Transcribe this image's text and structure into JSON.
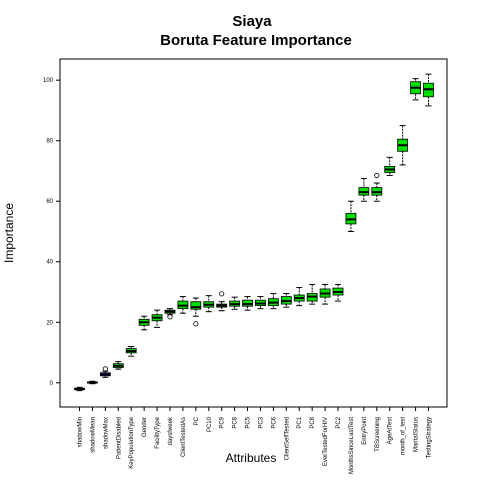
{
  "chart_data": {
    "type": "boxplot",
    "title": "Siaya",
    "subtitle": "Boruta Feature Importance",
    "xlabel": "Attributes",
    "ylabel": "Importance",
    "ylim": [
      -8,
      107
    ],
    "yticks": [
      0,
      20,
      40,
      60,
      80,
      100
    ],
    "colors": {
      "shadow": "#0000ff",
      "rejected": "#ff0000",
      "tentative": "#ffff00",
      "confirmed": "#00dd00"
    },
    "boxes": [
      {
        "label": "shadowMin",
        "status": "shadow",
        "min": -2.6,
        "q1": -2.3,
        "median": -2.0,
        "q3": -1.8,
        "max": -1.5,
        "outliers": []
      },
      {
        "label": "shadowMean",
        "status": "shadow",
        "min": -0.3,
        "q1": -0.1,
        "median": 0.1,
        "q3": 0.3,
        "max": 0.5,
        "outliers": []
      },
      {
        "label": "shadowMax",
        "status": "shadow",
        "min": 1.8,
        "q1": 2.3,
        "median": 2.8,
        "q3": 3.3,
        "max": 3.8,
        "outliers": [
          4.6
        ]
      },
      {
        "label": "PatientDisabled",
        "status": "confirmed",
        "min": 4.5,
        "q1": 5.0,
        "median": 5.6,
        "q3": 6.3,
        "max": 7.0,
        "outliers": []
      },
      {
        "label": "KeyPopulationType",
        "status": "confirmed",
        "min": 8.8,
        "q1": 9.9,
        "median": 10.5,
        "q3": 11.3,
        "max": 12.0,
        "outliers": []
      },
      {
        "label": "Gender",
        "status": "confirmed",
        "min": 17.5,
        "q1": 19.0,
        "median": 20.0,
        "q3": 21.0,
        "max": 22.0,
        "outliers": []
      },
      {
        "label": "FacilityType",
        "status": "confirmed",
        "min": 18.3,
        "q1": 20.5,
        "median": 21.5,
        "q3": 22.5,
        "max": 24.0,
        "outliers": []
      },
      {
        "label": "daysfweek",
        "status": "confirmed",
        "min": 22.5,
        "q1": 23.0,
        "median": 23.5,
        "q3": 24.0,
        "max": 24.5,
        "outliers": [
          21.8
        ]
      },
      {
        "label": "ClientTestedAs",
        "status": "confirmed",
        "min": 23.0,
        "q1": 24.5,
        "median": 25.5,
        "q3": 27.0,
        "max": 28.5,
        "outliers": []
      },
      {
        "label": "PC",
        "status": "confirmed",
        "min": 22.0,
        "q1": 24.3,
        "median": 25.0,
        "q3": 26.8,
        "max": 28.0,
        "outliers": [
          19.5
        ]
      },
      {
        "label": "PC10",
        "status": "confirmed",
        "min": 23.5,
        "q1": 25.0,
        "median": 25.8,
        "q3": 26.8,
        "max": 28.8,
        "outliers": []
      },
      {
        "label": "PC9",
        "status": "confirmed",
        "min": 23.8,
        "q1": 25.0,
        "median": 25.5,
        "q3": 26.0,
        "max": 26.8,
        "outliers": [
          29.4
        ]
      },
      {
        "label": "PC8",
        "status": "confirmed",
        "min": 24.3,
        "q1": 25.3,
        "median": 26.0,
        "q3": 27.0,
        "max": 28.3,
        "outliers": []
      },
      {
        "label": "PC5",
        "status": "confirmed",
        "min": 24.0,
        "q1": 25.3,
        "median": 26.0,
        "q3": 27.3,
        "max": 28.5,
        "outliers": []
      },
      {
        "label": "PC3",
        "status": "confirmed",
        "min": 24.5,
        "q1": 25.5,
        "median": 26.2,
        "q3": 27.3,
        "max": 28.5,
        "outliers": []
      },
      {
        "label": "PC6",
        "status": "confirmed",
        "min": 24.5,
        "q1": 25.5,
        "median": 26.5,
        "q3": 27.8,
        "max": 29.5,
        "outliers": []
      },
      {
        "label": "ClientSelfTested",
        "status": "confirmed",
        "min": 25.0,
        "q1": 26.0,
        "median": 27.0,
        "q3": 28.5,
        "max": 29.5,
        "outliers": []
      },
      {
        "label": "PC1",
        "status": "confirmed",
        "min": 25.5,
        "q1": 27.0,
        "median": 28.0,
        "q3": 29.0,
        "max": 31.5,
        "outliers": []
      },
      {
        "label": "PC8",
        "status": "confirmed",
        "min": 26.0,
        "q1": 27.0,
        "median": 28.5,
        "q3": 29.5,
        "max": 32.5,
        "outliers": []
      },
      {
        "label": "EverTestedForHIV",
        "status": "confirmed",
        "min": 26.0,
        "q1": 28.3,
        "median": 29.5,
        "q3": 31.0,
        "max": 32.5,
        "outliers": []
      },
      {
        "label": "PC2",
        "status": "confirmed",
        "min": 27.0,
        "q1": 29.0,
        "median": 30.0,
        "q3": 31.3,
        "max": 32.5,
        "outliers": []
      },
      {
        "label": "MonthsSinceLastTest",
        "status": "confirmed",
        "min": 50.0,
        "q1": 52.5,
        "median": 54.0,
        "q3": 56.0,
        "max": 60.0,
        "outliers": []
      },
      {
        "label": "EntryPoint",
        "status": "confirmed",
        "min": 60.0,
        "q1": 62.0,
        "median": 63.0,
        "q3": 64.5,
        "max": 67.5,
        "outliers": []
      },
      {
        "label": "TBScreening",
        "status": "confirmed",
        "min": 60.0,
        "q1": 62.0,
        "median": 63.0,
        "q3": 64.5,
        "max": 66.0,
        "outliers": [
          68.5
        ]
      },
      {
        "label": "AgeAtTest",
        "status": "confirmed",
        "min": 68.5,
        "q1": 69.5,
        "median": 70.5,
        "q3": 71.5,
        "max": 74.5,
        "outliers": []
      },
      {
        "label": "month_of_test",
        "status": "confirmed",
        "min": 72.0,
        "q1": 76.5,
        "median": 78.5,
        "q3": 80.5,
        "max": 85.0,
        "outliers": []
      },
      {
        "label": "MaritalStatus",
        "status": "confirmed",
        "min": 93.5,
        "q1": 95.5,
        "median": 97.5,
        "q3": 99.5,
        "max": 100.5,
        "outliers": []
      },
      {
        "label": "TestingStrategy",
        "status": "confirmed",
        "min": 91.5,
        "q1": 94.5,
        "median": 97.0,
        "q3": 99.0,
        "max": 102.0,
        "outliers": []
      }
    ]
  }
}
